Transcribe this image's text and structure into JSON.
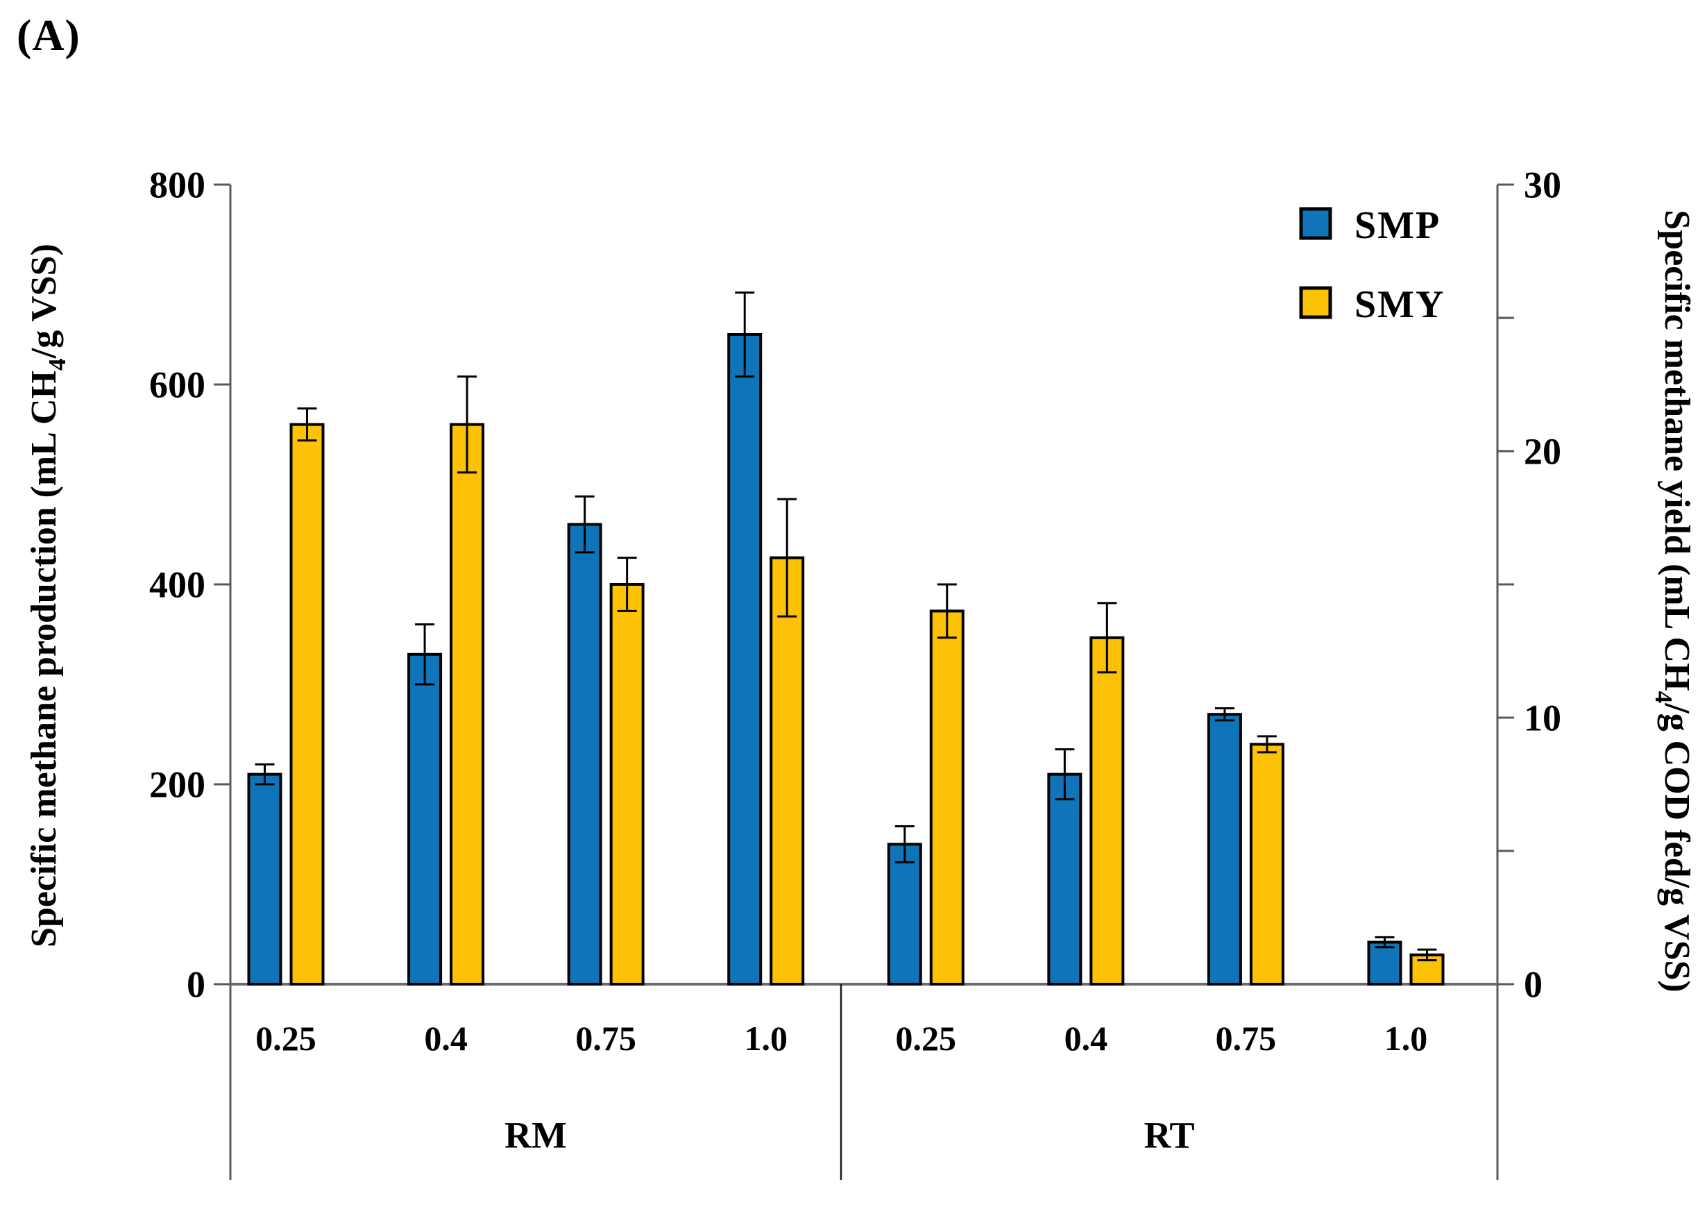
{
  "panel_label": "(A)",
  "legend": {
    "items": [
      {
        "label": "SMP",
        "color": "#0F74B8"
      },
      {
        "label": "SMY",
        "color": "#FDC105"
      }
    ]
  },
  "chart_data": {
    "type": "bar",
    "grid": false,
    "legend_position": "top-right-inside",
    "groups": [
      {
        "label": "RM",
        "categories": [
          "0.25",
          "0.4",
          "0.75",
          "1.0"
        ]
      },
      {
        "label": "RT",
        "categories": [
          "0.25",
          "0.4",
          "0.75",
          "1.0"
        ]
      }
    ],
    "series": [
      {
        "name": "SMP",
        "axis": "left",
        "color": "#0F74B8",
        "values": [
          210,
          330,
          460,
          650,
          140,
          210,
          270,
          42
        ],
        "errors": [
          10,
          30,
          28,
          42,
          18,
          25,
          6,
          5
        ]
      },
      {
        "name": "SMY",
        "axis": "right",
        "color": "#FDC105",
        "values": [
          21.0,
          21.0,
          15.0,
          16.0,
          14.0,
          13.0,
          9.0,
          1.1
        ],
        "errors": [
          0.6,
          1.8,
          1.0,
          2.2,
          1.0,
          1.3,
          0.3,
          0.2
        ]
      }
    ],
    "left_axis": {
      "title_pre": "Specific methane production (mL CH",
      "title_sub": "4",
      "title_post": "/g VSS)",
      "ticks": [
        0,
        200,
        400,
        600,
        800
      ],
      "range": [
        0,
        800
      ]
    },
    "right_axis": {
      "title_pre": "Specific methane yield (mL CH",
      "title_sub": "4",
      "title_post": "/g COD fed/g VSS)",
      "major_ticks": [
        0,
        10,
        20,
        30
      ],
      "minor_ticks": [
        5,
        15,
        25
      ],
      "range": [
        0,
        30
      ]
    }
  }
}
